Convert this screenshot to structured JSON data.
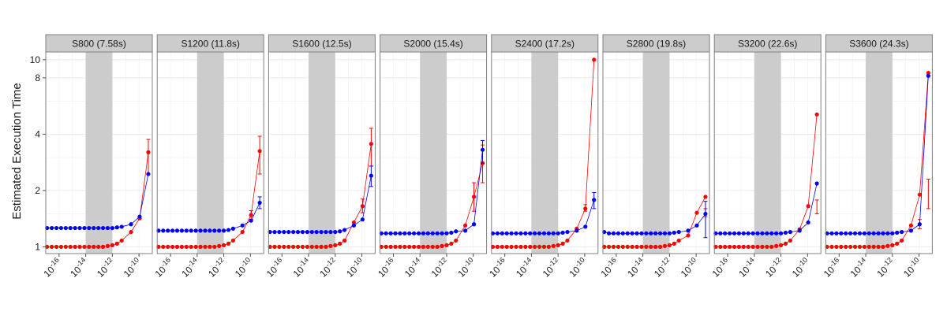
{
  "chart_data": {
    "type": "line",
    "ylabel": "Estimated Execution Time",
    "xlabel": "",
    "x_scale": "log10",
    "y_scale": "log",
    "xlim": [
      1e-17,
      1e-09
    ],
    "ylim": [
      0.92,
      11
    ],
    "x_ticks": [
      {
        "value": 1e-16,
        "base": "10",
        "exp": "-16"
      },
      {
        "value": 1e-14,
        "base": "10",
        "exp": "-14"
      },
      {
        "value": 1e-12,
        "base": "10",
        "exp": "-12"
      },
      {
        "value": 1e-10,
        "base": "10",
        "exp": "-10"
      }
    ],
    "y_ticks": [
      {
        "value": 1,
        "label": "1"
      },
      {
        "value": 2,
        "label": "2"
      },
      {
        "value": 4,
        "label": "4"
      },
      {
        "value": 8,
        "label": "8"
      },
      {
        "value": 10,
        "label": "10"
      }
    ],
    "shaded_region": [
      1e-14,
      1e-12
    ],
    "grid": true,
    "legend": "none",
    "colors": {
      "red": "#ff0000",
      "blue": "#0000ff",
      "shade": "#cccccc",
      "strip": "#cccccc"
    },
    "facets": [
      {
        "title": "S800 (7.58s)",
        "red": [
          1,
          1,
          1,
          1,
          1,
          1,
          1,
          1,
          1,
          1,
          1,
          1,
          1,
          1.01,
          1.02,
          1.04,
          1.08,
          1.2,
          1.42,
          3.2
        ],
        "blue": [
          1.26,
          1.26,
          1.26,
          1.26,
          1.26,
          1.26,
          1.26,
          1.26,
          1.26,
          1.26,
          1.26,
          1.26,
          1.26,
          1.26,
          1.26,
          1.27,
          1.28,
          1.32,
          1.45,
          2.45
        ],
        "red_err": [
          {
            "x": 2.5e-10,
            "lo": 2.45,
            "hi": 3.75
          }
        ],
        "blue_err": []
      },
      {
        "title": "S1200 (11.8s)",
        "red": [
          1,
          1,
          1,
          1,
          1,
          1,
          1,
          1,
          1,
          1,
          1,
          1,
          1,
          1.01,
          1.02,
          1.04,
          1.08,
          1.2,
          1.48,
          3.25
        ],
        "blue": [
          1.22,
          1.22,
          1.22,
          1.22,
          1.22,
          1.22,
          1.22,
          1.22,
          1.22,
          1.22,
          1.22,
          1.22,
          1.22,
          1.22,
          1.22,
          1.23,
          1.25,
          1.3,
          1.38,
          1.72
        ],
        "red_err": [
          {
            "x": 2.5e-10,
            "lo": 2.45,
            "hi": 3.9
          },
          {
            "x": 1.25e-10,
            "lo": 1.4,
            "hi": 1.56
          }
        ],
        "blue_err": [
          {
            "x": 5e-10,
            "lo": 1.6,
            "hi": 1.85
          }
        ]
      },
      {
        "title": "S1600 (12.5s)",
        "red": [
          1,
          1,
          1,
          1,
          1,
          1,
          1,
          1,
          1,
          1,
          1,
          1,
          1,
          1.01,
          1.02,
          1.04,
          1.08,
          1.35,
          1.65,
          3.55
        ],
        "blue": [
          1.2,
          1.2,
          1.2,
          1.2,
          1.2,
          1.2,
          1.2,
          1.2,
          1.2,
          1.2,
          1.2,
          1.2,
          1.2,
          1.2,
          1.2,
          1.21,
          1.23,
          1.3,
          1.4,
          2.4
        ],
        "red_err": [
          {
            "x": 2.5e-10,
            "lo": 2.7,
            "hi": 4.3
          },
          {
            "x": 1.25e-10,
            "lo": 1.52,
            "hi": 1.8
          }
        ],
        "blue_err": [
          {
            "x": 5e-10,
            "lo": 2.1,
            "hi": 2.7
          }
        ]
      },
      {
        "title": "S2000 (15.4s)",
        "red": [
          1,
          1,
          1,
          1,
          1,
          1,
          1,
          1,
          1,
          1,
          1,
          1,
          1,
          1.01,
          1.02,
          1.04,
          1.08,
          1.3,
          1.85,
          2.8
        ],
        "blue": [
          1.18,
          1.18,
          1.18,
          1.18,
          1.18,
          1.18,
          1.18,
          1.18,
          1.18,
          1.18,
          1.18,
          1.18,
          1.18,
          1.18,
          1.18,
          1.19,
          1.21,
          1.22,
          1.32,
          3.3
        ],
        "red_err": [
          {
            "x": 1.25e-10,
            "lo": 1.55,
            "hi": 2.2
          },
          {
            "x": 2.5e-10,
            "lo": 2.2,
            "hi": 3.5
          }
        ],
        "blue_err": [
          {
            "x": 5e-10,
            "lo": 2.8,
            "hi": 3.7
          }
        ]
      },
      {
        "title": "S2400 (17.2s)",
        "red": [
          1,
          1,
          1,
          1,
          1,
          1,
          1,
          1,
          1,
          1,
          1,
          1,
          1,
          1.01,
          1.02,
          1.04,
          1.08,
          1.25,
          1.6,
          10
        ],
        "blue": [
          1.18,
          1.18,
          1.18,
          1.18,
          1.18,
          1.18,
          1.18,
          1.18,
          1.18,
          1.18,
          1.18,
          1.18,
          1.18,
          1.18,
          1.18,
          1.19,
          1.2,
          1.22,
          1.28,
          1.78
        ],
        "red_err": [
          {
            "x": 1.25e-10,
            "lo": 1.55,
            "hi": 1.68
          }
        ],
        "blue_err": [
          {
            "x": 5e-10,
            "lo": 1.6,
            "hi": 1.95
          }
        ]
      },
      {
        "title": "S2800 (19.8s)",
        "red": [
          1,
          1,
          1,
          1,
          1,
          1,
          1,
          1,
          1,
          1,
          1,
          1,
          1,
          1.01,
          1.02,
          1.04,
          1.08,
          1.15,
          1.52,
          1.85
        ],
        "blue": [
          1.2,
          1.18,
          1.18,
          1.18,
          1.18,
          1.18,
          1.18,
          1.18,
          1.18,
          1.18,
          1.18,
          1.18,
          1.18,
          1.18,
          1.18,
          1.19,
          1.2,
          1.22,
          1.3,
          1.5
        ],
        "red_err": [
          {
            "x": 2.5e-10,
            "lo": 1.45,
            "hi": 1.6
          }
        ],
        "blue_err": [
          {
            "x": 5e-10,
            "lo": 1.12,
            "hi": 1.75
          }
        ]
      },
      {
        "title": "S3200 (22.6s)",
        "red": [
          1,
          1,
          1,
          1,
          1,
          1,
          1,
          1,
          1,
          1,
          1,
          1,
          1,
          1.01,
          1.02,
          1.04,
          1.08,
          1.24,
          1.65,
          5.1
        ],
        "blue": [
          1.18,
          1.18,
          1.18,
          1.18,
          1.18,
          1.18,
          1.18,
          1.18,
          1.18,
          1.18,
          1.18,
          1.18,
          1.18,
          1.18,
          1.18,
          1.19,
          1.2,
          1.22,
          1.35,
          2.18
        ],
        "red_err": [
          {
            "x": 2.5e-10,
            "lo": 1.5,
            "hi": 1.78
          }
        ],
        "blue_err": []
      },
      {
        "title": "S3600 (24.3s)",
        "red": [
          1,
          1,
          1,
          1,
          1,
          1,
          1,
          1,
          1,
          1,
          1,
          1,
          1,
          1.01,
          1.02,
          1.04,
          1.08,
          1.3,
          1.9,
          8.5
        ],
        "blue": [
          1.18,
          1.18,
          1.18,
          1.18,
          1.18,
          1.18,
          1.18,
          1.18,
          1.18,
          1.18,
          1.18,
          1.18,
          1.18,
          1.18,
          1.18,
          1.19,
          1.2,
          1.22,
          1.32,
          8.2
        ],
        "red_err": [
          {
            "x": 2.5e-10,
            "lo": 1.6,
            "hi": 2.3
          },
          {
            "x": 1.25e-10,
            "lo": 1.25,
            "hi": 1.4
          }
        ],
        "blue_err": []
      }
    ]
  }
}
